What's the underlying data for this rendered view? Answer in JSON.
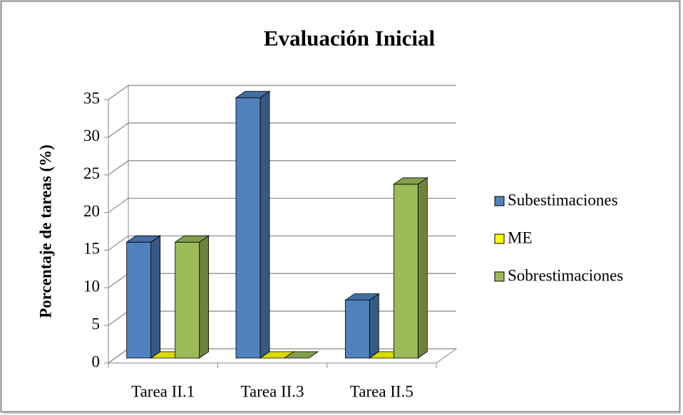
{
  "chart_data": {
    "type": "bar3d",
    "title": "Evaluación  Inicial",
    "y_label": "Porcentaje de tareas (%)",
    "categories": [
      "Tarea II.1",
      "Tarea II.3",
      "Tarea II.5"
    ],
    "series": [
      {
        "name": "Subestimaciones",
        "color": "#4f81bd",
        "values": [
          15.4,
          34.6,
          7.7
        ]
      },
      {
        "name": "ME",
        "color": "#ffff00",
        "values": [
          0,
          0,
          0
        ]
      },
      {
        "name": "Sobrestimaciones",
        "color": "#9bbb59",
        "values": [
          15.4,
          0,
          23.1
        ]
      }
    ],
    "ylim": [
      0,
      35
    ],
    "yticks": [
      0,
      5,
      10,
      15,
      20,
      25,
      30,
      35
    ],
    "grid": true,
    "legend": "right"
  }
}
